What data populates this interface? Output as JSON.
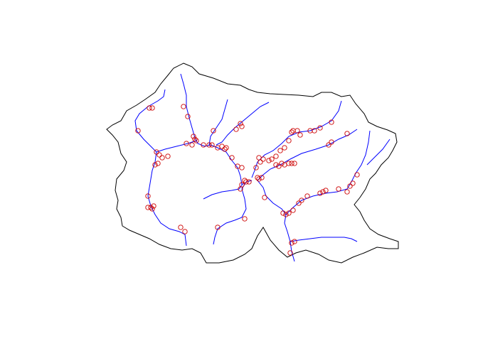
{
  "map": {
    "colors": {
      "background": "#ffffff",
      "boundary": "#000000",
      "river": "#0000ff",
      "marker": "#cc0000"
    },
    "layers": [
      "catchment-boundary",
      "river-network",
      "sample-sites"
    ],
    "marker_symbol": "open-circle"
  }
}
